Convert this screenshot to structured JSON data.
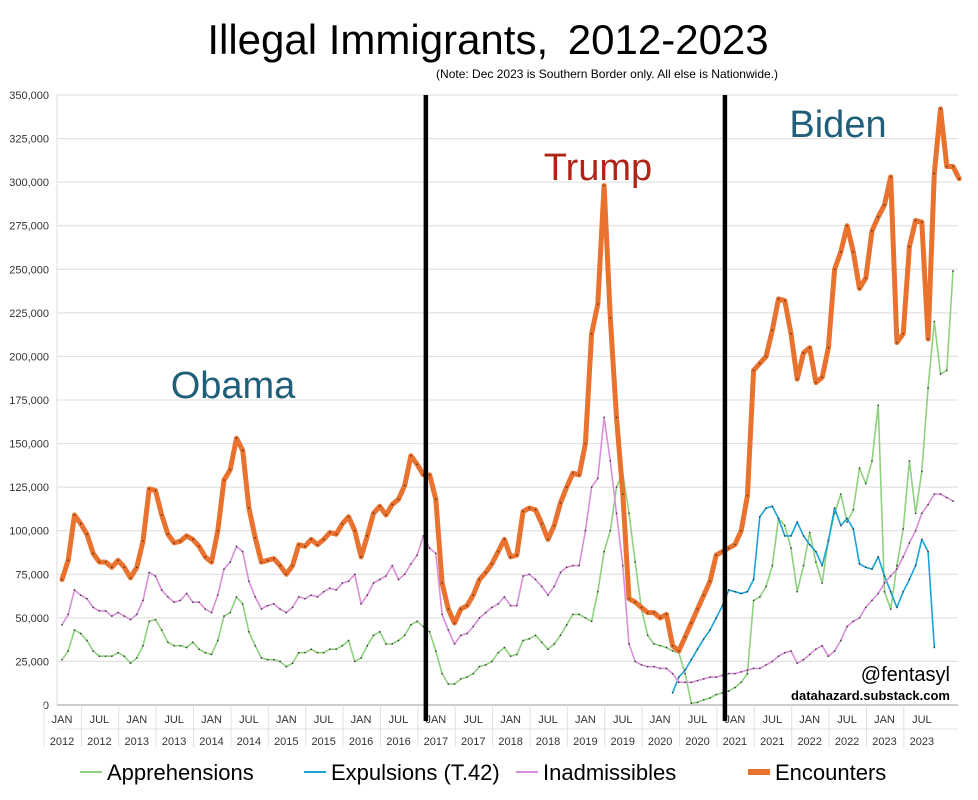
{
  "chart_data": {
    "type": "line",
    "title": "Illegal Immigrants,",
    "title_years": "2012-2023",
    "note": "(Note: Dec 2023 is Southern Border only. All else is Nationwide.)",
    "ylim": [
      0,
      350000
    ],
    "yticks": [
      "0",
      "25,000",
      "50,000",
      "75,000",
      "100,000",
      "125,000",
      "150,000",
      "175,000",
      "200,000",
      "225,000",
      "250,000",
      "275,000",
      "300,000",
      "325,000",
      "350,000"
    ],
    "x_start": "2012-01",
    "x_end": "2023-12",
    "xticks": [
      {
        "date": "2012-01",
        "m": "JAN",
        "y": "2012"
      },
      {
        "date": "2012-07",
        "m": "JUL",
        "y": "2012"
      },
      {
        "date": "2013-01",
        "m": "JAN",
        "y": "2013"
      },
      {
        "date": "2013-07",
        "m": "JUL",
        "y": "2013"
      },
      {
        "date": "2014-01",
        "m": "JAN",
        "y": "2014"
      },
      {
        "date": "2014-07",
        "m": "JUL",
        "y": "2014"
      },
      {
        "date": "2015-01",
        "m": "JAN",
        "y": "2015"
      },
      {
        "date": "2015-07",
        "m": "JUL",
        "y": "2015"
      },
      {
        "date": "2016-01",
        "m": "JAN",
        "y": "2016"
      },
      {
        "date": "2016-07",
        "m": "JUL",
        "y": "2016"
      },
      {
        "date": "2017-01",
        "m": "JAN",
        "y": "2017"
      },
      {
        "date": "2017-07",
        "m": "JUL",
        "y": "2017"
      },
      {
        "date": "2018-01",
        "m": "JAN",
        "y": "2018"
      },
      {
        "date": "2018-07",
        "m": "JUL",
        "y": "2018"
      },
      {
        "date": "2019-01",
        "m": "JAN",
        "y": "2019"
      },
      {
        "date": "2019-07",
        "m": "JUL",
        "y": "2019"
      },
      {
        "date": "2020-01",
        "m": "JAN",
        "y": "2020"
      },
      {
        "date": "2020-07",
        "m": "JUL",
        "y": "2020"
      },
      {
        "date": "2021-01",
        "m": "JAN",
        "y": "2021"
      },
      {
        "date": "2021-07",
        "m": "JUL",
        "y": "2021"
      },
      {
        "date": "2022-01",
        "m": "JAN",
        "y": "2022"
      },
      {
        "date": "2022-07",
        "m": "JUL",
        "y": "2022"
      },
      {
        "date": "2023-01",
        "m": "JAN",
        "y": "2023"
      },
      {
        "date": "2023-07",
        "m": "JUL",
        "y": "2023"
      }
    ],
    "grid": true,
    "legend_position": "bottom",
    "dividers": [
      "2017-01",
      "2021-01"
    ],
    "annotations": [
      {
        "text": "Obama",
        "color": "#1f5f7a"
      },
      {
        "text": "Trump",
        "color": "#b02418"
      },
      {
        "text": "Biden",
        "color": "#1f5f7a"
      }
    ],
    "credit_handle": "@fentasyl",
    "credit_site": "datahazard.substack.com",
    "series": [
      {
        "name": "Apprehensions",
        "color": "#8fd17f",
        "start": "2012-01",
        "values": [
          26000,
          31000,
          43000,
          41000,
          37000,
          31000,
          28000,
          28000,
          28000,
          30000,
          28000,
          24000,
          27000,
          34000,
          48000,
          49000,
          43000,
          36000,
          34000,
          34000,
          33000,
          36000,
          32000,
          30000,
          29000,
          37000,
          51000,
          53000,
          62000,
          58000,
          42000,
          34000,
          27000,
          26000,
          26000,
          25000,
          22000,
          24000,
          30000,
          30000,
          32000,
          30000,
          30000,
          32000,
          32000,
          34000,
          37000,
          25000,
          27000,
          34000,
          40000,
          42000,
          35000,
          35000,
          37000,
          40000,
          46000,
          48000,
          45000,
          42000,
          31000,
          18000,
          12000,
          12000,
          15000,
          16000,
          18000,
          22000,
          23000,
          25000,
          30000,
          33000,
          28000,
          29000,
          37000,
          38000,
          40000,
          36000,
          32000,
          35000,
          40000,
          46000,
          52000,
          52000,
          50000,
          48000,
          65000,
          88000,
          100000,
          125000,
          133000,
          110000,
          82000,
          55000,
          40000,
          35000,
          34000,
          33000,
          31000,
          30000,
          18000,
          1000,
          1500,
          3000,
          4000,
          6000,
          7000,
          8000,
          10000,
          13000,
          18000,
          60000,
          62000,
          68000,
          80000,
          107000,
          103000,
          90000,
          65000,
          80000,
          99000,
          82000,
          70000,
          95000,
          110000,
          121000,
          105000,
          112000,
          136000,
          127000,
          140000,
          172000,
          65000,
          55000,
          80000,
          101000,
          140000,
          110000,
          134000,
          182000,
          220000,
          190000,
          192000,
          249000
        ]
      },
      {
        "name": "Expulsions (T.42)",
        "color": "#1aa3d8",
        "start": "2020-03",
        "values": [
          7000,
          16000,
          20000,
          26000,
          32000,
          38000,
          43000,
          50000,
          57000,
          66000,
          65000,
          64000,
          65000,
          72000,
          108000,
          113000,
          114000,
          107000,
          97000,
          97000,
          105000,
          97000,
          92000,
          88000,
          80000,
          94000,
          113000,
          103000,
          107000,
          101000,
          81000,
          79000,
          78000,
          85000,
          74000,
          65000,
          56000,
          65000,
          72000,
          80000,
          95000,
          88000,
          33000
        ]
      },
      {
        "name": "Inadmissibles",
        "color": "#d98fd9",
        "start": "2012-01",
        "values": [
          46000,
          52000,
          66000,
          63000,
          61000,
          56000,
          54000,
          54000,
          51000,
          53000,
          51000,
          49000,
          52000,
          60000,
          76000,
          74000,
          66000,
          62000,
          59000,
          60000,
          64000,
          59000,
          59000,
          55000,
          53000,
          63000,
          78000,
          82000,
          91000,
          88000,
          71000,
          62000,
          55000,
          57000,
          58000,
          55000,
          53000,
          56000,
          62000,
          61000,
          63000,
          62000,
          65000,
          67000,
          66000,
          70000,
          71000,
          75000,
          58000,
          63000,
          70000,
          72000,
          74000,
          80000,
          72000,
          75000,
          81000,
          86000,
          97000,
          90000,
          87000,
          52000,
          43000,
          35000,
          40000,
          41000,
          45000,
          50000,
          53000,
          56000,
          58000,
          62000,
          57000,
          57000,
          74000,
          75000,
          72000,
          68000,
          63000,
          68000,
          76000,
          79000,
          80000,
          80000,
          100000,
          125000,
          130000,
          165000,
          140000,
          110000,
          80000,
          35000,
          25000,
          23000,
          22000,
          22000,
          21000,
          21000,
          18000,
          13000,
          13000,
          13000,
          14000,
          15000,
          16000,
          16000,
          17000,
          18000,
          18000,
          19000,
          20000,
          21000,
          21000,
          23000,
          25000,
          28000,
          30000,
          31000,
          24000,
          26000,
          29000,
          32000,
          34000,
          28000,
          31000,
          37000,
          45000,
          48000,
          50000,
          56000,
          60000,
          64000,
          70000,
          74000,
          78000,
          85000,
          93000,
          100000,
          110000,
          115000,
          121000,
          121000,
          119000,
          117000
        ]
      },
      {
        "name": "Encounters",
        "color": "#e8722e",
        "start": "2012-01",
        "values": [
          72000,
          83000,
          109000,
          104000,
          98000,
          87000,
          82000,
          82000,
          79000,
          83000,
          79000,
          73000,
          79000,
          94000,
          124000,
          123000,
          109000,
          98000,
          93000,
          94000,
          97000,
          95000,
          91000,
          85000,
          82000,
          100000,
          129000,
          135000,
          153000,
          146000,
          113000,
          96000,
          82000,
          83000,
          84000,
          80000,
          75000,
          80000,
          92000,
          91000,
          95000,
          92000,
          95000,
          99000,
          98000,
          104000,
          108000,
          100000,
          85000,
          97000,
          110000,
          114000,
          109000,
          115000,
          118000,
          126000,
          143000,
          138000,
          132000,
          132000,
          118000,
          70000,
          55000,
          47000,
          55000,
          57000,
          63000,
          72000,
          76000,
          81000,
          88000,
          95000,
          85000,
          86000,
          111000,
          113000,
          112000,
          104000,
          95000,
          103000,
          116000,
          125000,
          133000,
          132000,
          150000,
          213000,
          230000,
          298000,
          222000,
          165000,
          121000,
          61000,
          59000,
          56000,
          53000,
          53000,
          50000,
          52000,
          34000,
          31000,
          39000,
          47000,
          55000,
          63000,
          71000,
          86000,
          88000,
          90000,
          92000,
          100000,
          120000,
          192000,
          196000,
          200000,
          215000,
          233000,
          232000,
          213000,
          187000,
          202000,
          205000,
          185000,
          188000,
          205000,
          250000,
          260000,
          275000,
          260000,
          239000,
          245000,
          272000,
          280000,
          287000,
          303000,
          208000,
          213000,
          263000,
          278000,
          277000,
          210000,
          305000,
          342000,
          309000,
          309000,
          302000
        ]
      }
    ]
  }
}
